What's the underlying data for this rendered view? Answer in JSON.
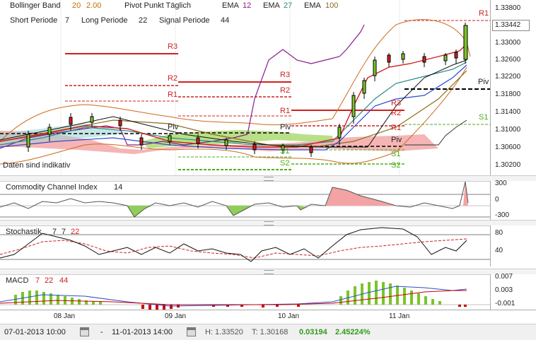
{
  "legend": {
    "bollinger_label": "Bollinger Band",
    "bollinger_p1": "20",
    "bollinger_p2": "2.00",
    "pivot_label": "Pivot Punkt Täglich",
    "ema1_label": "EMA",
    "ema1_val": "12",
    "ema2_label": "EMA",
    "ema2_val": "27",
    "ema3_label": "EMA",
    "ema3_val": "100",
    "short_label": "Short Periode",
    "short_val": "7",
    "long_label": "Long Periode",
    "long_val": "22",
    "signal_label": "Signal Periode",
    "signal_val": "44",
    "indicative_note": "Daten sind indikativ"
  },
  "price_axis": {
    "ticks": [
      "1.33800",
      "1.33000",
      "1.32600",
      "1.32200",
      "1.31800",
      "1.31400",
      "1.31000",
      "1.30600",
      "1.30200"
    ],
    "current_price": "1.33442"
  },
  "pivot_levels": [
    "R3",
    "R2",
    "R1",
    "Piv",
    "S1",
    "S2"
  ],
  "cci": {
    "title": "Commodity Channel Index",
    "period": "14",
    "ticks": [
      "300",
      "0",
      "-300"
    ]
  },
  "stochastic": {
    "title": "Stochastik",
    "p1": "7",
    "p2": "7",
    "p3": "22",
    "ticks": [
      "80",
      "40"
    ]
  },
  "macd": {
    "title": "MACD",
    "p1": "7",
    "p2": "22",
    "p3": "44",
    "ticks": [
      "0.007",
      "0.003",
      "-0.001"
    ]
  },
  "time_axis": [
    "08 Jan",
    "09 Jan",
    "10 Jan",
    "11 Jan"
  ],
  "footer": {
    "start": "07-01-2013 10:00",
    "sep": "-",
    "end": "11-01-2013 14:00",
    "high": "H: 1.33520",
    "low": "T: 1.30168",
    "change_abs": "0.03194",
    "change_pct": "2.45224%"
  },
  "colors": {
    "ema12": "#8b1a8b",
    "ema27": "#2b8a8a",
    "ema100": "#8a6d1a",
    "pivot_red": "#d02020",
    "support_green": "#4caf1a",
    "macd_bar": "#7ac52a",
    "macd_neg": "#cc0000",
    "cci_pos": "#f3a3a3",
    "cci_neg": "#8fce58"
  }
}
